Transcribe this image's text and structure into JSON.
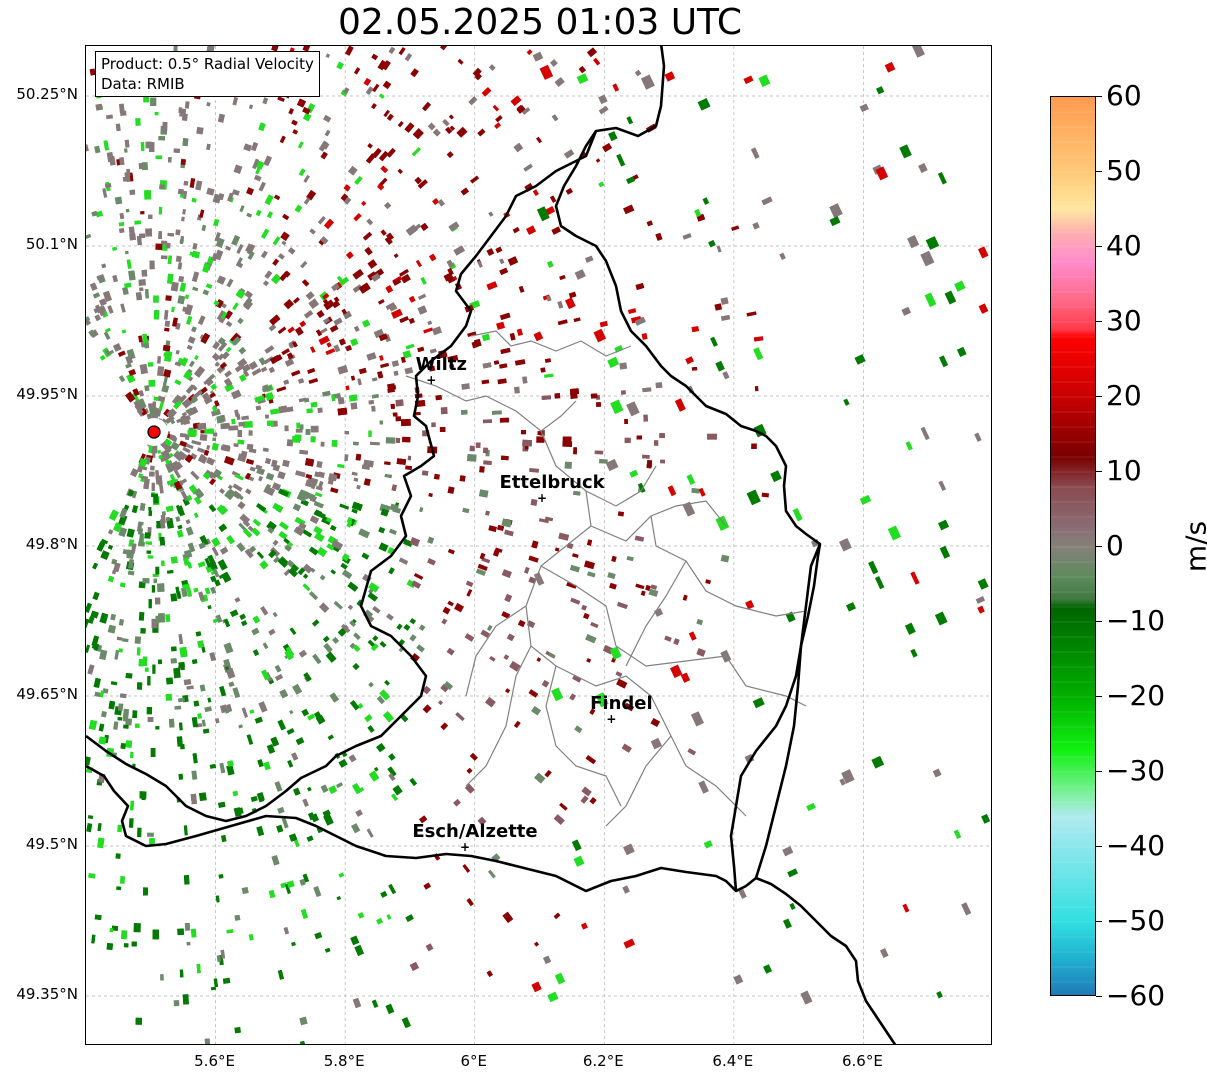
{
  "title": "02.05.2025 01:03 UTC",
  "info": {
    "product": "Product: 0.5° Radial Velocity",
    "source": "Data: RMIB"
  },
  "map": {
    "lon_range": [
      5.4,
      6.8
    ],
    "lat_range": [
      49.3,
      50.3
    ],
    "lat_ticks": [
      {
        "value": 50.25,
        "label": "50.25°N"
      },
      {
        "value": 50.1,
        "label": "50.1°N"
      },
      {
        "value": 49.95,
        "label": "49.95°N"
      },
      {
        "value": 49.8,
        "label": "49.8°N"
      },
      {
        "value": 49.65,
        "label": "49.65°N"
      },
      {
        "value": 49.5,
        "label": "49.5°N"
      },
      {
        "value": 49.35,
        "label": "49.35°N"
      }
    ],
    "lon_ticks": [
      {
        "value": 5.6,
        "label": "5.6°E"
      },
      {
        "value": 5.8,
        "label": "5.8°E"
      },
      {
        "value": 6.0,
        "label": "6°E"
      },
      {
        "value": 6.2,
        "label": "6.2°E"
      },
      {
        "value": 6.4,
        "label": "6.4°E"
      },
      {
        "value": 6.6,
        "label": "6.6°E"
      }
    ],
    "grid": true,
    "radar_site": {
      "lon": 5.505,
      "lat": 49.914
    },
    "cities": [
      {
        "name": "Wiltz",
        "lon": 5.933,
        "lat": 49.966
      },
      {
        "name": "Ettelbruck",
        "lon": 6.104,
        "lat": 49.848
      },
      {
        "name": "Findel",
        "lon": 6.211,
        "lat": 49.627
      },
      {
        "name": "Esch/Alzette",
        "lon": 5.985,
        "lat": 49.499
      }
    ]
  },
  "colorbar": {
    "unit": "m/s",
    "range": [
      -60,
      60
    ],
    "ticks": [
      {
        "value": 60,
        "label": "60"
      },
      {
        "value": 50,
        "label": "50"
      },
      {
        "value": 40,
        "label": "40"
      },
      {
        "value": 30,
        "label": "30"
      },
      {
        "value": 20,
        "label": "20"
      },
      {
        "value": 10,
        "label": "10"
      },
      {
        "value": 0,
        "label": "0"
      },
      {
        "value": -10,
        "label": "−10"
      },
      {
        "value": -20,
        "label": "−20"
      },
      {
        "value": -30,
        "label": "−30"
      },
      {
        "value": -40,
        "label": "−40"
      },
      {
        "value": -50,
        "label": "−50"
      },
      {
        "value": -60,
        "label": "−60"
      }
    ],
    "stops": [
      {
        "value": 60,
        "color": "#ff9a50"
      },
      {
        "value": 50,
        "color": "#ffc978"
      },
      {
        "value": 45,
        "color": "#ffe7a0"
      },
      {
        "value": 42,
        "color": "#ffb0b0"
      },
      {
        "value": 38,
        "color": "#ff8ccc"
      },
      {
        "value": 33,
        "color": "#ff6a8a"
      },
      {
        "value": 29,
        "color": "#ff3a4a"
      },
      {
        "value": 28,
        "color": "#ff0000"
      },
      {
        "value": 20,
        "color": "#c80000"
      },
      {
        "value": 12,
        "color": "#7a0000"
      },
      {
        "value": 8,
        "color": "#8a4a50"
      },
      {
        "value": 3,
        "color": "#8a6a72"
      },
      {
        "value": 0,
        "color": "#858078"
      },
      {
        "value": -4,
        "color": "#5e8a5e"
      },
      {
        "value": -7,
        "color": "#3f7a3f"
      },
      {
        "value": -8,
        "color": "#006400"
      },
      {
        "value": -20,
        "color": "#00b000"
      },
      {
        "value": -27,
        "color": "#10f010"
      },
      {
        "value": -33,
        "color": "#80f0a0"
      },
      {
        "value": -36,
        "color": "#b0eaf0"
      },
      {
        "value": -50,
        "color": "#30dfe0"
      },
      {
        "value": -55,
        "color": "#20b0d0"
      },
      {
        "value": -60,
        "color": "#1f77b4"
      }
    ]
  },
  "colors": {
    "inbound_strong": "#007a00",
    "inbound_light": "#22dd22",
    "outbound_dark": "#8b0000",
    "outbound_red": "#d40000",
    "near_zero": "#867878",
    "near_zero_green": "#6a8a6a",
    "border_country": "#000000",
    "border_canton": "#808080"
  }
}
